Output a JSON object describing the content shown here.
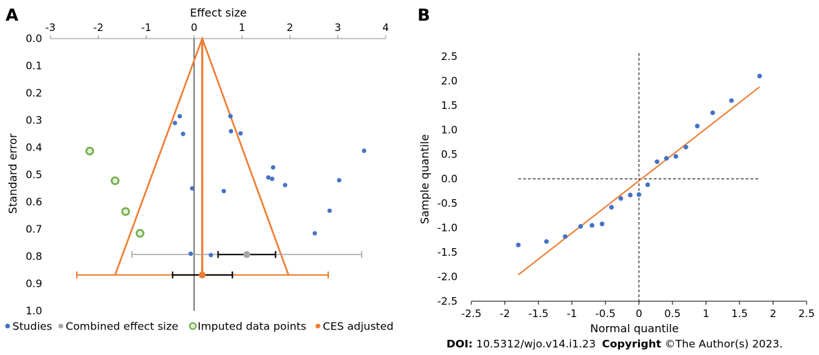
{
  "chart_data": [
    {
      "panel": "A",
      "type": "scatter",
      "title": "",
      "xlabel": "Effect size",
      "ylabel": "Standard error",
      "xlim": [
        -3,
        4
      ],
      "ylim": [
        0,
        1
      ],
      "y_inverted": true,
      "x_axis_position": "top",
      "xticks": [
        "-3",
        "-2",
        "-1",
        "0",
        "1",
        "2",
        "3",
        "4"
      ],
      "xtick_values": [
        -3,
        -2,
        -1,
        0,
        1,
        2,
        3,
        4
      ],
      "yticks": [
        "0.0",
        "0.1",
        "0.2",
        "0.3",
        "0.4",
        "0.5",
        "0.6",
        "0.7",
        "0.8",
        "0.9",
        "1.0"
      ],
      "ytick_values": [
        0,
        0.1,
        0.2,
        0.3,
        0.4,
        0.5,
        0.6,
        0.7,
        0.8,
        0.9,
        1.0
      ],
      "legend_position": "bottom",
      "legend": [
        {
          "label": "Studies",
          "marker": "dot",
          "color": "#4472c4"
        },
        {
          "label": "Combined effect size",
          "marker": "dot",
          "color": "#a5a5a5"
        },
        {
          "label": "Imputed data points",
          "marker": "ring",
          "color": "#70ad47"
        },
        {
          "label": "CES adjusted",
          "marker": "dot",
          "color": "#ed7d31"
        }
      ],
      "studies": [
        {
          "x": -0.4,
          "y": 0.31
        },
        {
          "x": -0.3,
          "y": 0.285
        },
        {
          "x": -0.23,
          "y": 0.35
        },
        {
          "x": -0.04,
          "y": 0.55
        },
        {
          "x": -0.07,
          "y": 0.79
        },
        {
          "x": 0.35,
          "y": 0.795
        },
        {
          "x": 0.62,
          "y": 0.56
        },
        {
          "x": 0.76,
          "y": 0.285
        },
        {
          "x": 0.77,
          "y": 0.34
        },
        {
          "x": 0.97,
          "y": 0.348
        },
        {
          "x": 1.55,
          "y": 0.51
        },
        {
          "x": 1.63,
          "y": 0.515
        },
        {
          "x": 1.65,
          "y": 0.473
        },
        {
          "x": 1.9,
          "y": 0.538
        },
        {
          "x": 2.52,
          "y": 0.715
        },
        {
          "x": 2.83,
          "y": 0.632
        },
        {
          "x": 3.03,
          "y": 0.52
        },
        {
          "x": 3.55,
          "y": 0.412
        }
      ],
      "imputed": [
        {
          "x": -2.18,
          "y": 0.413
        },
        {
          "x": -1.65,
          "y": 0.522
        },
        {
          "x": -1.43,
          "y": 0.635
        },
        {
          "x": -1.13,
          "y": 0.715
        }
      ],
      "combined_effect": {
        "x": 1.1,
        "y": 0.793,
        "ci95": [
          0.5,
          1.7
        ],
        "pi": [
          -1.3,
          3.5
        ],
        "color": "#a5a5a5"
      },
      "ces_adjusted": {
        "x": 0.17,
        "y": 0.868,
        "ci95": [
          -0.45,
          0.8
        ],
        "pi": [
          -2.45,
          2.8
        ],
        "color": "#ed7d31"
      },
      "funnel": {
        "apex": {
          "x": 0.17,
          "y": 0
        },
        "base_y": 0.868,
        "base_left": -1.65,
        "base_right": 1.97,
        "color": "#ed7d31"
      },
      "reference_line_x": 0
    },
    {
      "panel": "B",
      "type": "scatter",
      "title": "",
      "xlabel": "Normal quantile",
      "ylabel": "Sample quantile",
      "xlim": [
        -2.5,
        2.5
      ],
      "ylim": [
        -2.5,
        2.5
      ],
      "xticks": [
        "-2.5",
        "-2",
        "-1.5",
        "-1",
        "-0.5",
        "0",
        "0.5",
        "1",
        "1.5",
        "2",
        "2.5"
      ],
      "xtick_values": [
        -2.5,
        -2,
        -1.5,
        -1,
        -0.5,
        0,
        0.5,
        1,
        1.5,
        2,
        2.5
      ],
      "yticks": [
        "2.5",
        "2.0",
        "1.5",
        "1.0",
        "0.5",
        "0.0",
        "-0.5",
        "-1.0",
        "-1.5",
        "-2.0",
        "-2.5"
      ],
      "ytick_values": [
        2.5,
        2.0,
        1.5,
        1.0,
        0.5,
        0.0,
        -0.5,
        -1.0,
        -1.5,
        -2.0,
        -2.5
      ],
      "points_color": "#4472c4",
      "points": [
        {
          "x": -1.8,
          "y": -1.35
        },
        {
          "x": -1.38,
          "y": -1.28
        },
        {
          "x": -1.1,
          "y": -1.18
        },
        {
          "x": -0.87,
          "y": -0.97
        },
        {
          "x": -0.7,
          "y": -0.95
        },
        {
          "x": -0.55,
          "y": -0.92
        },
        {
          "x": -0.41,
          "y": -0.58
        },
        {
          "x": -0.27,
          "y": -0.4
        },
        {
          "x": -0.13,
          "y": -0.33
        },
        {
          "x": 0,
          "y": -0.32
        },
        {
          "x": 0.13,
          "y": -0.12
        },
        {
          "x": 0.27,
          "y": 0.35
        },
        {
          "x": 0.41,
          "y": 0.42
        },
        {
          "x": 0.55,
          "y": 0.46
        },
        {
          "x": 0.7,
          "y": 0.65
        },
        {
          "x": 0.87,
          "y": 1.08
        },
        {
          "x": 1.1,
          "y": 1.35
        },
        {
          "x": 1.38,
          "y": 1.6
        },
        {
          "x": 1.8,
          "y": 2.1
        }
      ],
      "fit_line": {
        "x1": -1.8,
        "y1": -1.96,
        "x2": 1.8,
        "y2": 1.88,
        "color": "#ed7d31"
      },
      "reference_lines": {
        "x": 0,
        "y": 0,
        "style": "dashed"
      }
    }
  ],
  "panels": {
    "a_label": "A",
    "b_label": "B"
  },
  "footer": {
    "doi_label": "DOI:",
    "doi_value": "10.5312/wjo.v14.i1.23",
    "copyright_label": "Copyright",
    "copyright_value": "©The Author(s) 2023."
  }
}
